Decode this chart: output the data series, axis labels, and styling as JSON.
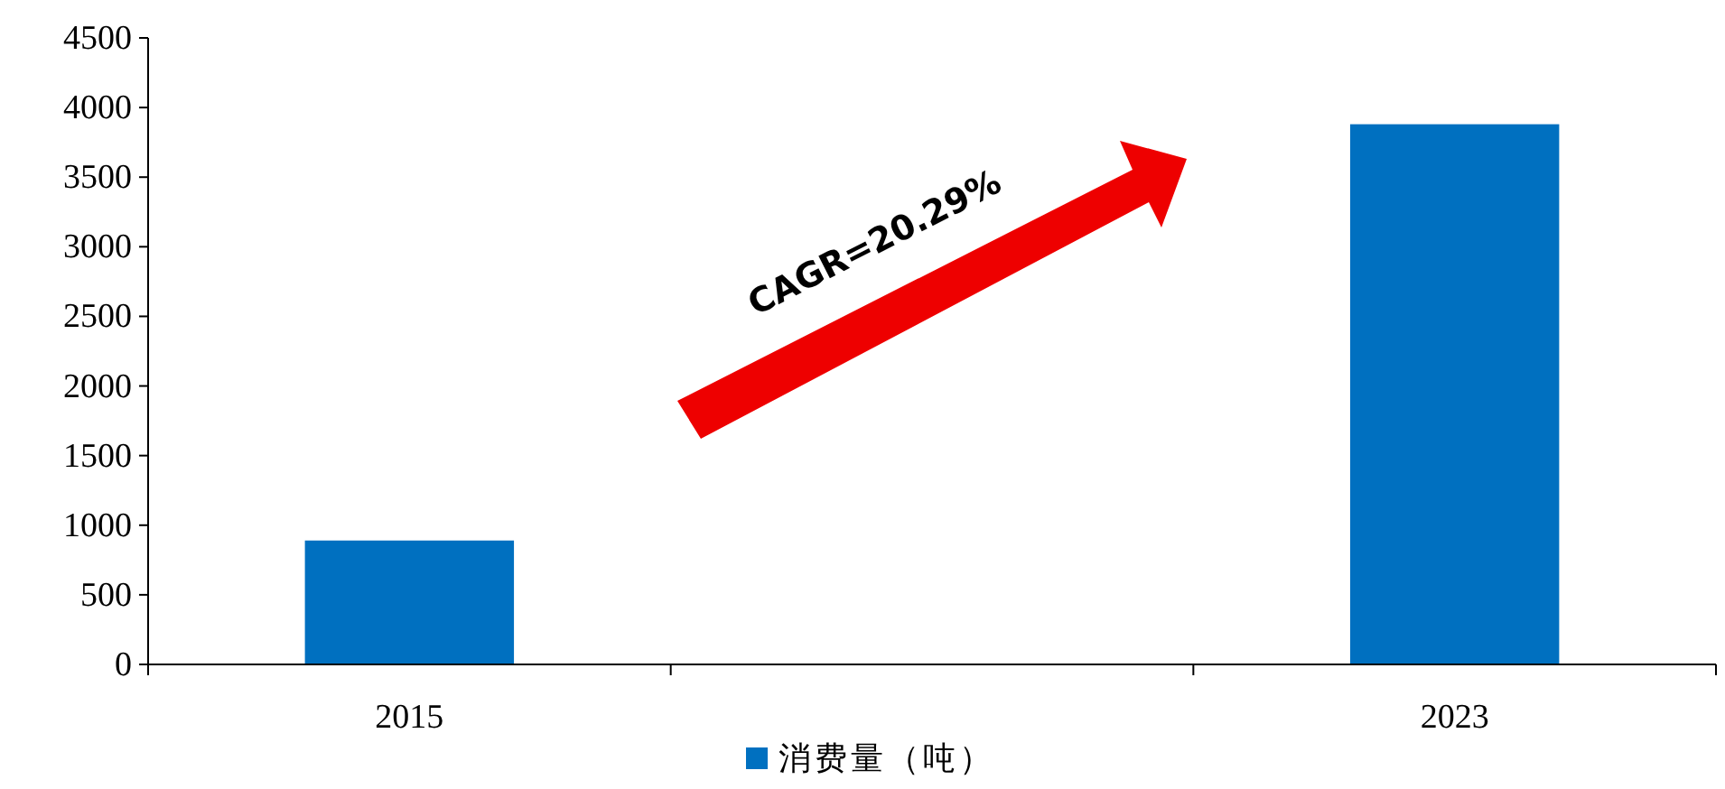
{
  "chart_data": {
    "type": "bar",
    "categories": [
      "2015",
      null,
      "2023"
    ],
    "series": [
      {
        "name": "消费量（吨）",
        "color": "#0070c0",
        "values": [
          890,
          null,
          3880
        ]
      }
    ],
    "ylim": [
      0,
      4500
    ],
    "yticks": [
      0,
      500,
      1000,
      1500,
      2000,
      2500,
      3000,
      3500,
      4000,
      4500
    ],
    "annotations": [
      "CAGR=20.29%"
    ],
    "legend": "bottom",
    "grid": false
  }
}
